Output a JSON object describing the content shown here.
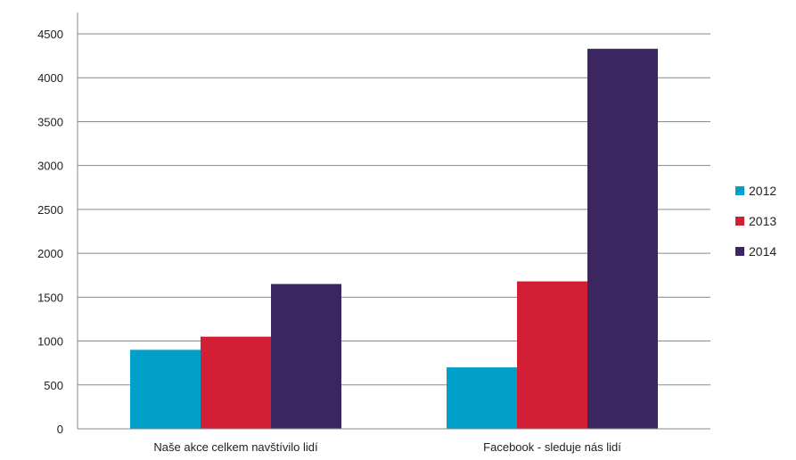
{
  "chart_data": {
    "type": "bar",
    "title": "",
    "xlabel": "",
    "ylabel": "",
    "categories": [
      "Naše akce celkem navštívilo lidí",
      "Facebook - sleduje nás lidí"
    ],
    "series": [
      {
        "name": "2012",
        "values": [
          900,
          700
        ],
        "color": "#00a0c8"
      },
      {
        "name": "2013",
        "values": [
          1050,
          1680
        ],
        "color": "#d21f35"
      },
      {
        "name": "2014",
        "values": [
          1650,
          4330
        ],
        "color": "#3c2661"
      }
    ],
    "ylim": [
      0,
      4500
    ],
    "yticks": [
      "0",
      "500",
      "1000",
      "1500",
      "2000",
      "2500",
      "3000",
      "3500",
      "4000",
      "4500"
    ],
    "grid": true,
    "legend_position": "right"
  }
}
